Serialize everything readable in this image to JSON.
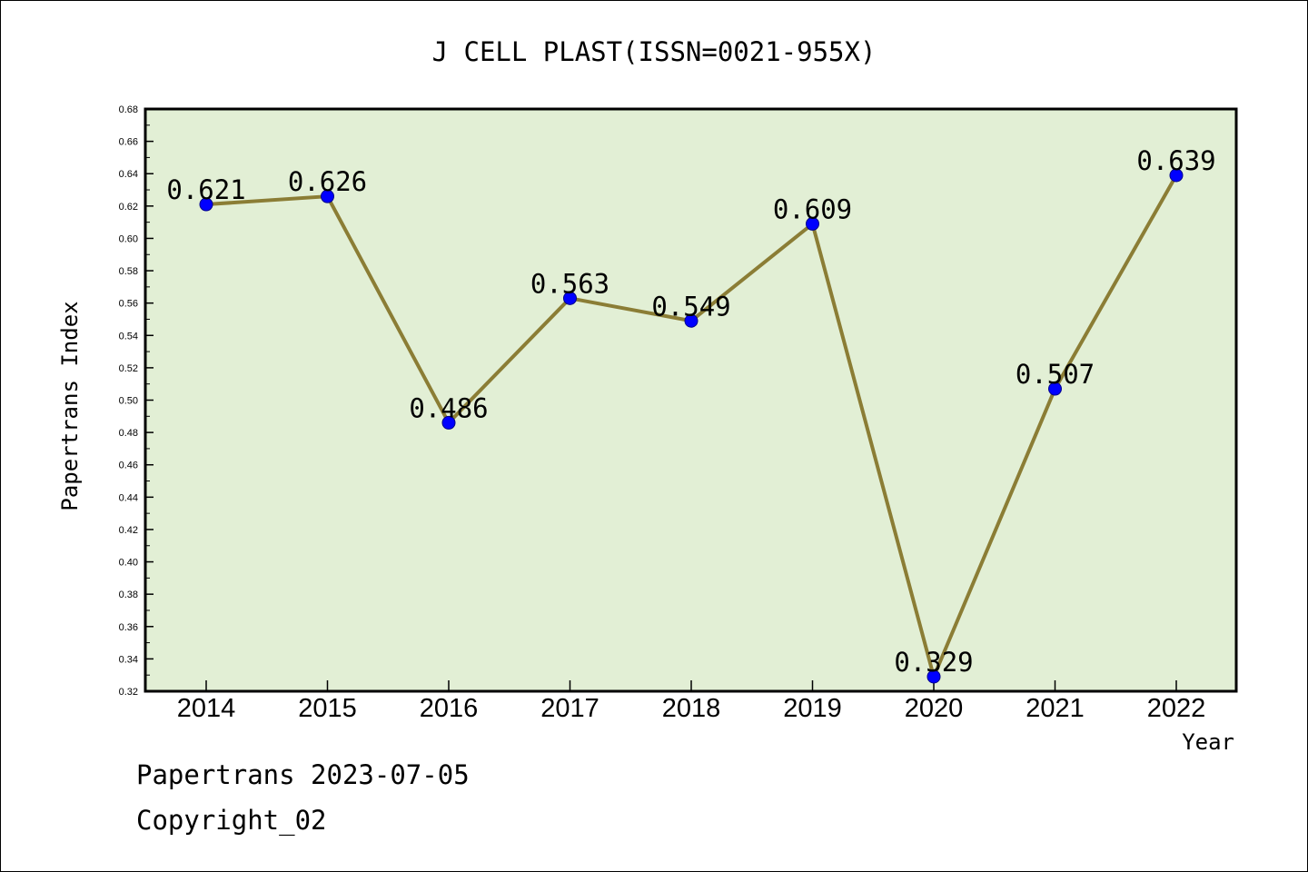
{
  "chart_data": {
    "type": "line",
    "title": "J CELL PLAST(ISSN=0021-955X)",
    "xlabel": "Year",
    "ylabel": "Papertrans Index",
    "categories": [
      "2014",
      "2015",
      "2016",
      "2017",
      "2018",
      "2019",
      "2020",
      "2021",
      "2022"
    ],
    "series": [
      {
        "values": [
          0.621,
          0.626,
          0.486,
          0.563,
          0.549,
          0.609,
          0.329,
          0.507,
          0.639
        ],
        "data_labels": [
          "0.621",
          "0.626",
          "0.486",
          "0.563",
          "0.549",
          "0.609",
          "0.329",
          "0.507",
          "0.639"
        ],
        "line_color": "#8b7d35",
        "marker_color": "#0000ff"
      }
    ],
    "ylim": [
      0.32,
      0.68
    ],
    "yticks": [
      "0.32",
      "0.34",
      "0.36",
      "0.38",
      "0.40",
      "0.42",
      "0.44",
      "0.46",
      "0.48",
      "0.50",
      "0.52",
      "0.54",
      "0.56",
      "0.58",
      "0.60",
      "0.62",
      "0.64",
      "0.66",
      "0.68"
    ],
    "plot_background": "#e2efd5",
    "grid": false,
    "legend": "none"
  },
  "footer": {
    "line1": "Papertrans 2023-07-05",
    "line2": "Copyright_02"
  }
}
